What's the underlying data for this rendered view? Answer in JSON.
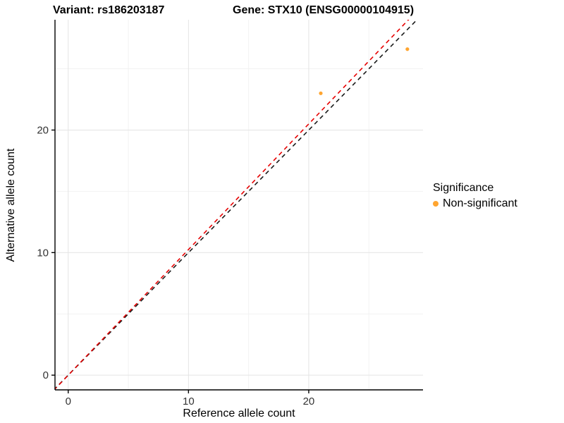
{
  "header": {
    "title_left": "Variant: rs186203187",
    "title_right": "Gene: STX10 (ENSG00000104915)"
  },
  "chart_data": {
    "type": "scatter",
    "xlabel": "Reference allele count",
    "ylabel": "Alternative allele count",
    "xlim": [
      -1.1,
      29.5
    ],
    "ylim": [
      -1.2,
      29.0
    ],
    "xticks": [
      0,
      10,
      20
    ],
    "yticks": [
      0,
      10,
      20
    ],
    "xminor": [
      5,
      15,
      25
    ],
    "yminor": [
      5,
      15,
      25
    ],
    "grid": true,
    "points": [
      {
        "x": 21.0,
        "y": 23.0,
        "series": "Non-significant"
      },
      {
        "x": 28.2,
        "y": 26.6,
        "series": "Non-significant"
      }
    ],
    "point_color": "#FFA530",
    "lines": [
      {
        "name": "identity",
        "slope": 1.0,
        "intercept": 0,
        "color": "#1a1a1a",
        "dash": "6 5"
      },
      {
        "name": "fit",
        "slope": 1.025,
        "intercept": 0,
        "color": "#E60000",
        "dash": "6 5"
      }
    ],
    "legend": {
      "title": "Significance",
      "items": [
        {
          "label": "Non-significant",
          "color": "#FFA530"
        }
      ]
    },
    "colors": {
      "grid_major": "#E4E4E4",
      "grid_minor": "#F2F2F2",
      "axis": "#000000",
      "tick_label": "#333333",
      "background": "#FFFFFF"
    }
  }
}
